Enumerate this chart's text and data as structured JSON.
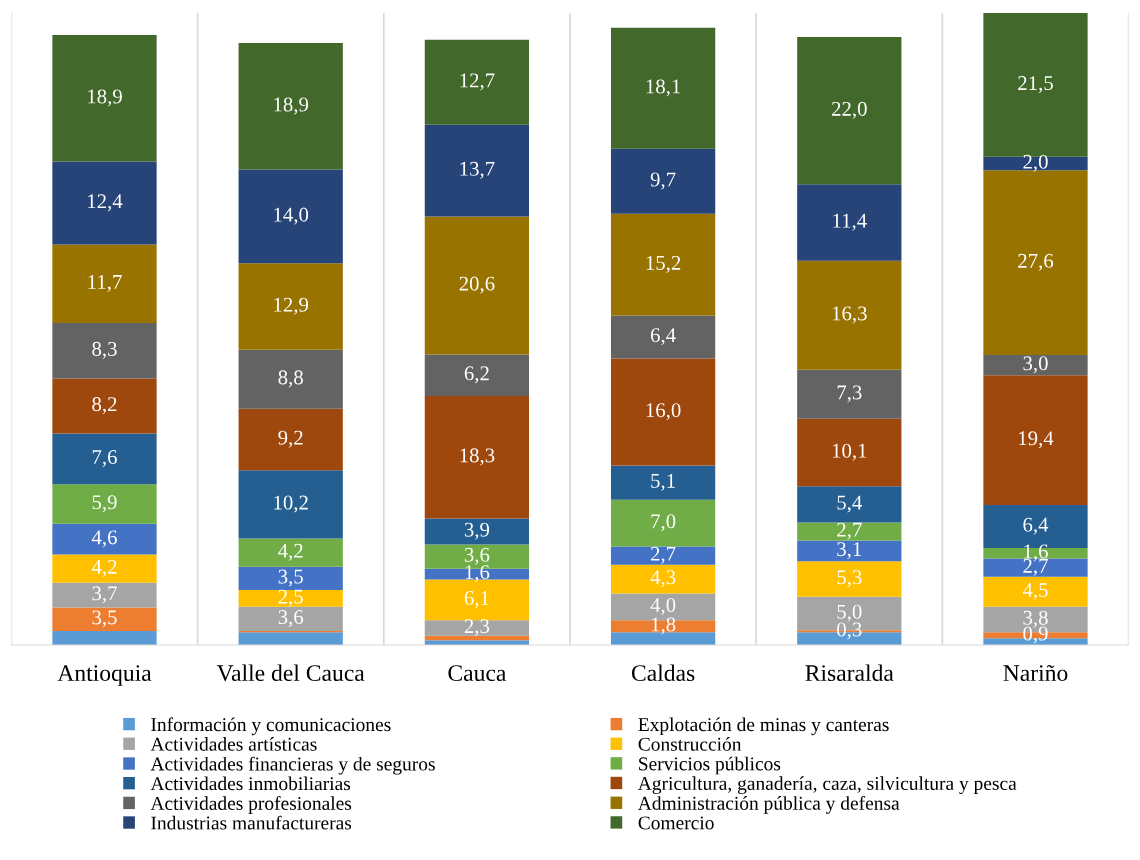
{
  "chart_data": {
    "type": "bar",
    "stacked": true,
    "categories": [
      "Antioquia",
      "Valle del Cauca",
      "Cauca",
      "Caldas",
      "Risaralda",
      "Nariño"
    ],
    "grid": "x",
    "legend": "bottom",
    "tick_labels": "x",
    "series": [
      {
        "name": "Información y comunicaciones",
        "color": "#5b9bd5",
        "values": [
          2.1,
          1.9,
          0.7,
          1.9,
          1.9,
          1.0
        ],
        "value_labels": [
          null,
          null,
          null,
          null,
          null,
          null
        ]
      },
      {
        "name": "Explotación de minas y canteras",
        "color": "#ed7d31",
        "values": [
          3.5,
          0.2,
          0.7,
          1.8,
          0.3,
          0.9
        ],
        "value_labels": [
          "3,5",
          null,
          null,
          "1,8",
          "0,3",
          "0,9"
        ]
      },
      {
        "name": "Actividades artísticas",
        "color": "#a5a5a5",
        "values": [
          3.7,
          3.6,
          2.3,
          4.0,
          5.0,
          3.8
        ],
        "value_labels": [
          "3,7",
          "3,6",
          "2,3",
          "4,0",
          "5,0",
          "3,8"
        ]
      },
      {
        "name": "Construcción",
        "color": "#ffc000",
        "values": [
          4.2,
          2.5,
          6.1,
          4.3,
          5.3,
          4.5
        ],
        "value_labels": [
          "4,2",
          "2,5",
          "6,1",
          "4,3",
          "5,3",
          "4,5"
        ]
      },
      {
        "name": "Actividades financieras y de seguros",
        "color": "#4472c4",
        "values": [
          4.6,
          3.5,
          1.6,
          2.7,
          3.1,
          2.7
        ],
        "value_labels": [
          "4,6",
          "3,5",
          "1,6",
          "2,7",
          "3,1",
          "2,7"
        ]
      },
      {
        "name": "Servicios públicos",
        "color": "#70ad47",
        "values": [
          5.9,
          4.2,
          3.6,
          7.0,
          2.7,
          1.6
        ],
        "value_labels": [
          "5,9",
          "4,2",
          "3,6",
          "7,0",
          "2,7",
          "1,6"
        ]
      },
      {
        "name": "Actividades inmobiliarias",
        "color": "#255e91",
        "values": [
          7.6,
          10.2,
          3.9,
          5.1,
          5.4,
          6.4
        ],
        "value_labels": [
          "7,6",
          "10,2",
          "3,9",
          "5,1",
          "5,4",
          "6,4"
        ]
      },
      {
        "name": "Agricultura, ganadería, caza, silvicultura y pesca",
        "color": "#9e480e",
        "values": [
          8.2,
          9.2,
          18.3,
          16.0,
          10.1,
          19.4
        ],
        "value_labels": [
          "8,2",
          "9,2",
          "18,3",
          "16,0",
          "10,1",
          "19,4"
        ]
      },
      {
        "name": "Actividades profesionales",
        "color": "#636363",
        "values": [
          8.3,
          8.8,
          6.2,
          6.4,
          7.3,
          3.0
        ],
        "value_labels": [
          "8,3",
          "8,8",
          "6,2",
          "6,4",
          "7,3",
          "3,0"
        ]
      },
      {
        "name": "Administración pública y defensa",
        "color": "#997300",
        "values": [
          11.7,
          12.9,
          20.6,
          15.2,
          16.3,
          27.6
        ],
        "value_labels": [
          "11,7",
          "12,9",
          "20,6",
          "15,2",
          "16,3",
          "27,6"
        ]
      },
      {
        "name": "Industrias manufactureras",
        "color": "#264478",
        "values": [
          12.4,
          14.0,
          13.7,
          9.7,
          11.4,
          2.0
        ],
        "value_labels": [
          "12,4",
          "14,0",
          "13,7",
          "9,7",
          "11,4",
          "2,0"
        ]
      },
      {
        "name": "Comercio",
        "color": "#43682b",
        "values": [
          18.9,
          18.9,
          12.7,
          18.1,
          22.0,
          21.5
        ],
        "value_labels": [
          "18,9",
          "18,9",
          "12,7",
          "18,1",
          "22,0",
          "21,5"
        ]
      }
    ]
  }
}
